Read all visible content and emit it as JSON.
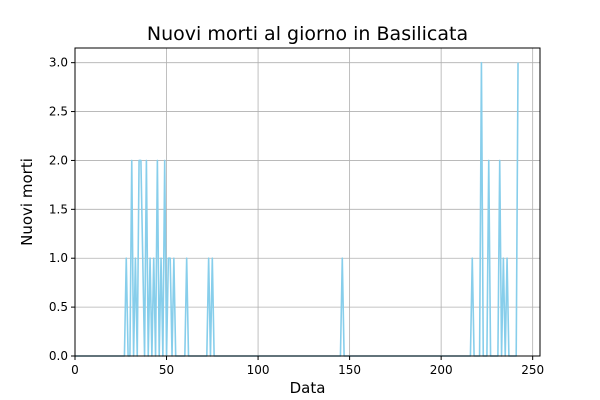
{
  "chart_data": {
    "type": "line",
    "title": "Nuovi morti al giorno in Basilicata",
    "xlabel": "Data",
    "ylabel": "Nuovi morti",
    "xlim": [
      0,
      254
    ],
    "ylim": [
      0,
      3.15
    ],
    "xticks": [
      0,
      50,
      100,
      150,
      200,
      250
    ],
    "xtick_labels": [
      "0",
      "50",
      "100",
      "150",
      "200",
      "250"
    ],
    "yticks": [
      0,
      0.5,
      1,
      1.5,
      2,
      2.5,
      3
    ],
    "ytick_labels": [
      "0.0",
      "0.5",
      "1.0",
      "1.5",
      "2.0",
      "2.5",
      "3.0"
    ],
    "grid": true,
    "series": [
      {
        "color": "#87ceeb",
        "x": [
          0,
          27,
          28,
          29,
          30,
          31,
          32,
          33,
          34,
          35,
          36,
          37,
          38,
          39,
          40,
          41,
          42,
          43,
          44,
          45,
          46,
          47,
          48,
          49,
          50,
          51,
          52,
          53,
          54,
          55,
          56,
          60,
          61,
          62,
          72,
          73,
          74,
          75,
          76,
          145,
          146,
          147,
          216,
          217,
          218,
          221,
          222,
          223,
          225,
          226,
          227,
          231,
          232,
          233,
          234,
          235,
          236,
          237,
          238,
          241,
          242
        ],
        "y": [
          0,
          0,
          1,
          0,
          0,
          2,
          0,
          1,
          0,
          2,
          2,
          1,
          0,
          2,
          0,
          1,
          0,
          1,
          0,
          2,
          0,
          1,
          0,
          2,
          0,
          1,
          1,
          0,
          1,
          0,
          0,
          0,
          1,
          0,
          0,
          1,
          0,
          1,
          0,
          0,
          1,
          0,
          0,
          1,
          0,
          0,
          3,
          0,
          0,
          2,
          0,
          0,
          2,
          0,
          1,
          0,
          1,
          0,
          0,
          0,
          3
        ]
      }
    ]
  }
}
